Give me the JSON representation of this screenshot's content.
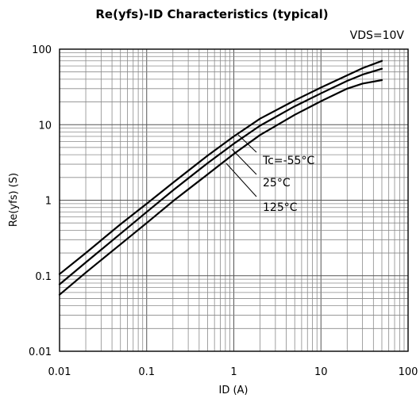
{
  "chart_data": {
    "type": "line",
    "title": "Re(yfs)-ID Characteristics (typical)",
    "condition": "VDS=10V",
    "xlabel": "ID (A)",
    "ylabel": "Re(yfs) (S)",
    "xscale": "log",
    "yscale": "log",
    "xlim": [
      0.01,
      100
    ],
    "ylim": [
      0.01,
      100
    ],
    "grid": true,
    "x_tick_labels": [
      "0.01",
      "0.1",
      "1",
      "10",
      "100"
    ],
    "y_tick_labels": [
      "0.01",
      "0.1",
      "1",
      "10",
      "100"
    ],
    "annotations": [
      "Tc=-55°C",
      "25°C",
      "125°C"
    ],
    "series": [
      {
        "name": "Tc=-55°C",
        "x": [
          0.01,
          0.02,
          0.05,
          0.1,
          0.2,
          0.5,
          1,
          2,
          5,
          10,
          20,
          30,
          50
        ],
        "y": [
          0.105,
          0.2,
          0.48,
          0.9,
          1.7,
          3.9,
          7.0,
          12.0,
          21.0,
          31.0,
          45.0,
          56.0,
          70.0
        ]
      },
      {
        "name": "25°C",
        "x": [
          0.01,
          0.02,
          0.05,
          0.1,
          0.2,
          0.5,
          1,
          2,
          5,
          10,
          20,
          30,
          50
        ],
        "y": [
          0.077,
          0.15,
          0.36,
          0.7,
          1.35,
          3.1,
          5.6,
          9.7,
          17.5,
          26.0,
          38.0,
          46.0,
          55.0
        ]
      },
      {
        "name": "125°C",
        "x": [
          0.01,
          0.02,
          0.05,
          0.1,
          0.2,
          0.5,
          1,
          2,
          5,
          10,
          20,
          30,
          50
        ],
        "y": [
          0.056,
          0.11,
          0.26,
          0.5,
          0.97,
          2.2,
          4.1,
          7.3,
          13.5,
          20.5,
          30.0,
          35.0,
          39.0
        ]
      }
    ]
  }
}
